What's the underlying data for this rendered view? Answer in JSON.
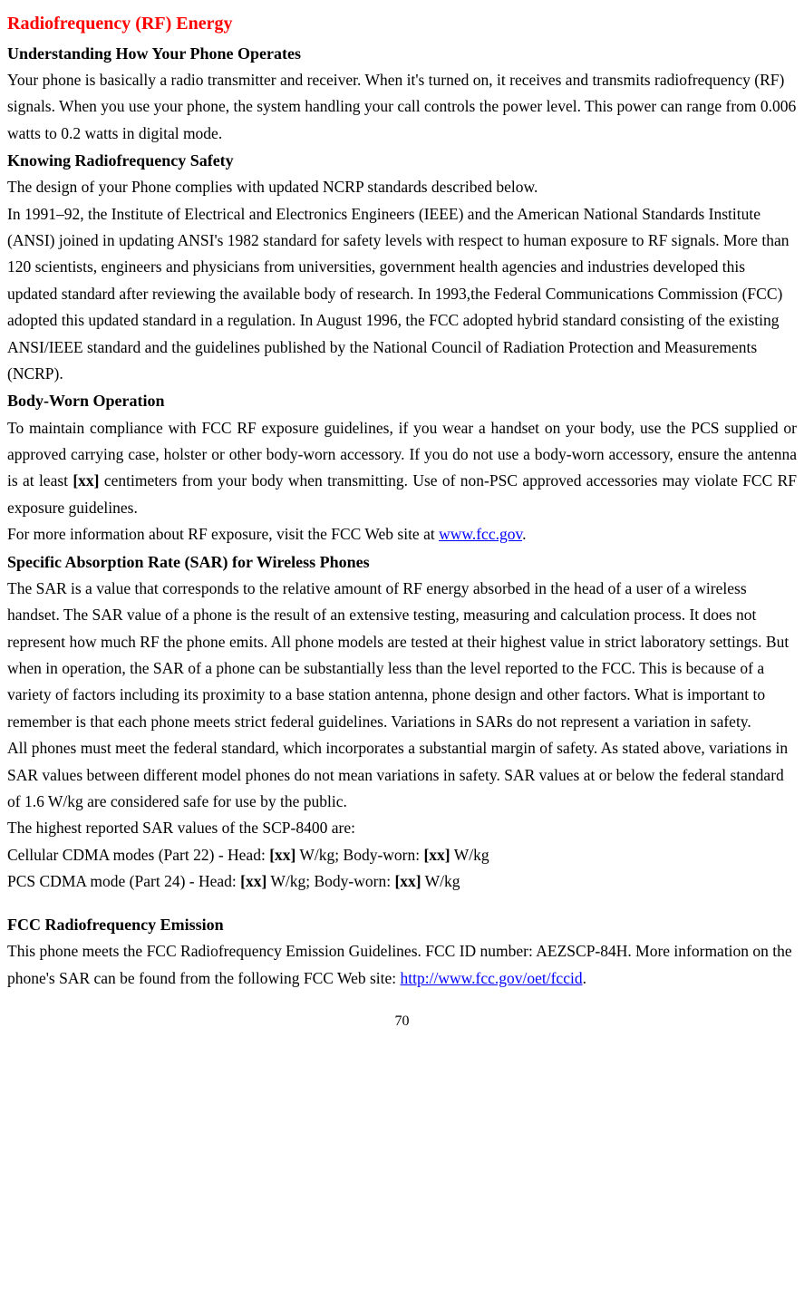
{
  "title": "Radiofrequency (RF) Energy",
  "sections": {
    "understanding": {
      "heading": "Understanding How Your Phone Operates",
      "body": "Your phone is basically a radio transmitter and receiver. When it's turned on, it receives and transmits radiofrequency (RF) signals. When you use your phone, the system handling your call controls the power level. This power can range from 0.006 watts to 0.2 watts in digital mode."
    },
    "knowing": {
      "heading": "Knowing Radiofrequency Safety",
      "body1": "The design of your Phone complies with updated NCRP standards described below.",
      "body2": "In 1991–92, the Institute of Electrical and Electronics Engineers (IEEE) and the American National Standards Institute (ANSI) joined in updating ANSI's 1982 standard for safety levels with respect to human exposure to RF signals. More than 120 scientists, engineers and physicians from universities, government health agencies and industries developed this updated standard after reviewing the available body of research. In 1993,the Federal Communications Commission (FCC) adopted this updated standard in a regulation. In August 1996, the FCC adopted hybrid standard consisting of the existing ANSI/IEEE standard and the guidelines published by the National Council of Radiation Protection and Measurements (NCRP)."
    },
    "bodyworn": {
      "heading": "Body-Worn Operation",
      "body1_pre": "To maintain compliance with FCC RF exposure guidelines, if you wear a handset on your body, use the PCS supplied or approved carrying case, holster or other body-worn accessory. If you do not use a body-worn accessory, ensure the antenna is at least ",
      "placeholder": "[xx]",
      "body1_post": " centimeters from your body when transmitting. Use of non-PSC approved accessories may violate FCC RF exposure guidelines.",
      "body2_pre": "For more information about RF exposure, visit the FCC Web site at ",
      "link": "www.fcc.gov",
      "body2_post": "."
    },
    "sar": {
      "heading": "Specific Absorption Rate (SAR) for Wireless Phones",
      "body1": "The SAR is a value that corresponds to the relative amount of RF energy absorbed in the head of a user of a wireless handset. The SAR value of a phone is the result of an extensive testing, measuring and calculation process. It does not represent how much RF the phone emits. All phone models are tested at their highest value in strict laboratory settings. But when in operation, the SAR of a phone can be substantially less than the level reported to the FCC. This is because of a variety of factors including its proximity to a base station antenna, phone design and other factors. What is important to remember is that each phone meets strict federal guidelines. Variations in SARs do not represent a variation in safety.",
      "body2": "All phones must meet the federal standard, which incorporates a substantial margin of safety. As stated above, variations in SAR values between different model phones do not mean variations in safety. SAR values at or below the federal standard of 1.6 W/kg are considered safe for use by the public.",
      "body3": "The highest reported SAR values of the SCP-8400 are:",
      "cellular_pre": "Cellular CDMA modes (Part 22) - Head: ",
      "cellular_head": "[xx]",
      "cellular_mid": "  W/kg; Body-worn: ",
      "cellular_body": "[xx]",
      "cellular_post": "  W/kg",
      "pcs_pre": "PCS CDMA mode (Part 24) - Head:  ",
      "pcs_head": "[xx]",
      "pcs_mid": "  W/kg; Body-worn: ",
      "pcs_body": "[xx]",
      "pcs_post": "  W/kg"
    },
    "fcc": {
      "heading": "FCC Radiofrequency Emission",
      "body_pre": "This phone meets the FCC Radiofrequency Emission Guidelines. FCC ID number: AEZSCP-84H. More information on the phone's SAR can be found from the following FCC Web site: ",
      "link": "http://www.fcc.gov/oet/fccid",
      "body_post": "."
    }
  },
  "page_number": "70",
  "colors": {
    "title": "#ff0000",
    "text": "#000000",
    "link": "#0000ff",
    "background": "#ffffff"
  }
}
